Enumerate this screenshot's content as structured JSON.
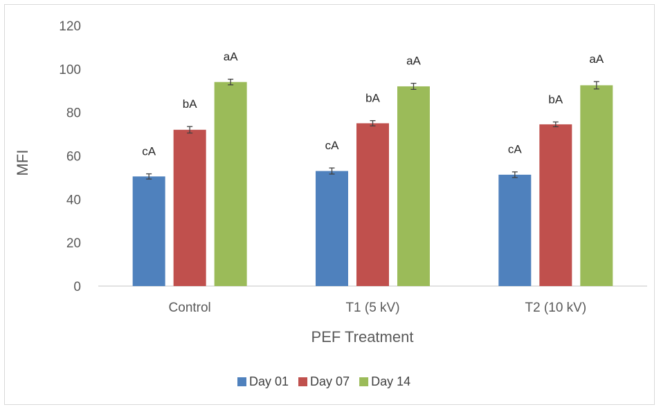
{
  "chart_data": {
    "type": "bar",
    "title": "",
    "xlabel": "PEF Treatment",
    "ylabel": "MFI",
    "ylim": [
      0,
      120
    ],
    "yticks": [
      0,
      20,
      40,
      60,
      80,
      100,
      120
    ],
    "categories": [
      "Control",
      "T1 (5 kV)",
      "T2 (10 kV)"
    ],
    "series": [
      {
        "name": "Day 01",
        "color": "#4f81bd",
        "values": [
          50.5,
          53.0,
          51.3
        ],
        "errors": [
          1.2,
          1.4,
          1.3
        ],
        "labels": [
          "cA",
          "cA",
          "cA"
        ]
      },
      {
        "name": "Day 07",
        "color": "#c0504d",
        "values": [
          72.0,
          75.0,
          74.5
        ],
        "errors": [
          1.5,
          1.2,
          1.1
        ],
        "labels": [
          "bA",
          "bA",
          "bA"
        ]
      },
      {
        "name": "Day 14",
        "color": "#9bbb59",
        "values": [
          94.0,
          92.0,
          92.5
        ],
        "errors": [
          1.3,
          1.4,
          1.7
        ],
        "labels": [
          "aA",
          "aA",
          "aA"
        ]
      }
    ],
    "grid": false,
    "legend_position": "bottom"
  }
}
